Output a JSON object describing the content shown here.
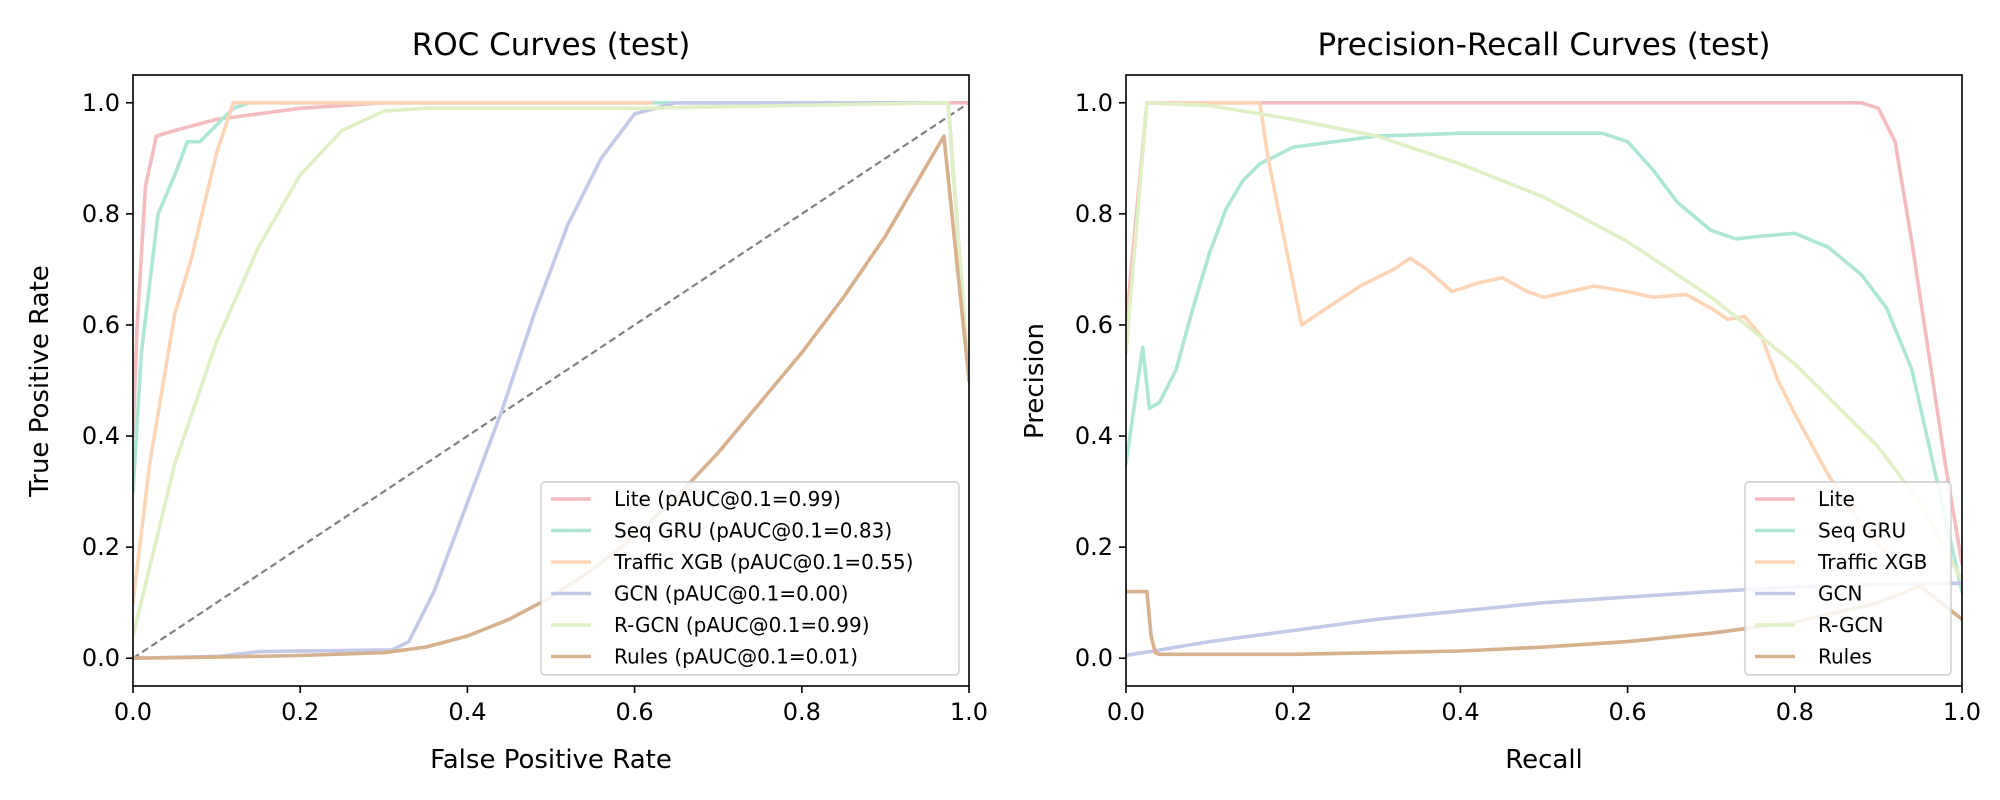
{
  "chart_data": [
    {
      "type": "line",
      "title": "ROC Curves (test)",
      "xlabel": "False Positive Rate",
      "ylabel": "True Positive Rate",
      "xlim": [
        0,
        1
      ],
      "ylim": [
        -0.05,
        1.05
      ],
      "xticks": [
        "0.0",
        "0.2",
        "0.4",
        "0.6",
        "0.8",
        "1.0"
      ],
      "yticks": [
        "0.0",
        "0.2",
        "0.4",
        "0.6",
        "0.8",
        "1.0"
      ],
      "legend_position": "bottom-right",
      "reference_line": {
        "x": [
          0,
          1
        ],
        "y": [
          0,
          1
        ],
        "color": "#808080",
        "style": "dashed"
      },
      "series": [
        {
          "name": "Lite (pAUC@0.1=0.99)",
          "color": "#f4bcbf",
          "x": [
            0.0,
            0.005,
            0.015,
            0.028,
            0.05,
            0.1,
            0.2,
            0.3,
            0.5,
            1.0
          ],
          "y": [
            0.4,
            0.6,
            0.85,
            0.94,
            0.95,
            0.97,
            0.99,
            1.0,
            1.0,
            1.0
          ]
        },
        {
          "name": "Seq GRU (pAUC@0.1=0.83)",
          "color": "#aee6d6",
          "x": [
            0.0,
            0.01,
            0.03,
            0.05,
            0.065,
            0.08,
            0.1,
            0.12,
            0.14,
            0.3,
            0.6,
            0.97,
            0.975,
            1.0
          ],
          "y": [
            0.3,
            0.55,
            0.8,
            0.87,
            0.93,
            0.93,
            0.96,
            0.99,
            1.0,
            1.0,
            1.0,
            1.0,
            1.0,
            0.5
          ]
        },
        {
          "name": "Traffic XGB (pAUC@0.1=0.55)",
          "color": "#fdd4b6",
          "x": [
            0.0,
            0.02,
            0.05,
            0.07,
            0.1,
            0.12,
            0.3,
            0.62
          ],
          "y": [
            0.1,
            0.35,
            0.62,
            0.72,
            0.91,
            1.0,
            1.0,
            1.0
          ]
        },
        {
          "name": "GCN (pAUC@0.1=0.00)",
          "color": "#c4c9e8",
          "x": [
            0.0,
            0.1,
            0.15,
            0.31,
            0.33,
            0.36,
            0.4,
            0.44,
            0.48,
            0.52,
            0.56,
            0.6,
            0.65,
            0.7,
            0.8,
            0.97,
            0.975,
            1.0
          ],
          "y": [
            0.0,
            0.003,
            0.012,
            0.015,
            0.03,
            0.12,
            0.28,
            0.44,
            0.62,
            0.78,
            0.9,
            0.98,
            1.0,
            1.0,
            1.0,
            1.0,
            1.0,
            0.5
          ]
        },
        {
          "name": "R-GCN (pAUC@0.1=0.99)",
          "color": "#e0efc6",
          "x": [
            0.0,
            0.05,
            0.1,
            0.15,
            0.2,
            0.25,
            0.3,
            0.35,
            0.6,
            0.97,
            0.975,
            1.0
          ],
          "y": [
            0.04,
            0.35,
            0.57,
            0.74,
            0.87,
            0.95,
            0.985,
            0.99,
            0.99,
            1.0,
            1.0,
            0.5
          ]
        },
        {
          "name": "Rules (pAUC@0.1=0.01)",
          "color": "#d7b08e",
          "x": [
            0.0,
            0.1,
            0.2,
            0.3,
            0.35,
            0.4,
            0.45,
            0.5,
            0.55,
            0.6,
            0.65,
            0.7,
            0.75,
            0.8,
            0.85,
            0.9,
            0.97,
            1.0
          ],
          "y": [
            0.0,
            0.002,
            0.005,
            0.01,
            0.02,
            0.04,
            0.07,
            0.11,
            0.16,
            0.22,
            0.29,
            0.37,
            0.46,
            0.55,
            0.65,
            0.76,
            0.94,
            0.5
          ]
        }
      ]
    },
    {
      "type": "line",
      "title": "Precision-Recall Curves (test)",
      "xlabel": "Recall",
      "ylabel": "Precision",
      "xlim": [
        0,
        1
      ],
      "ylim": [
        -0.05,
        1.05
      ],
      "xticks": [
        "0.0",
        "0.2",
        "0.4",
        "0.6",
        "0.8",
        "1.0"
      ],
      "yticks": [
        "0.0",
        "0.2",
        "0.4",
        "0.6",
        "0.8",
        "1.0"
      ],
      "legend_position": "bottom-right",
      "series": [
        {
          "name": "Lite",
          "color": "#f4bcbf",
          "x": [
            0.0,
            0.025,
            0.3,
            0.6,
            0.88,
            0.9,
            0.92,
            0.94,
            0.96,
            0.98,
            1.0
          ],
          "y": [
            0.6,
            1.0,
            1.0,
            1.0,
            1.0,
            0.99,
            0.93,
            0.75,
            0.55,
            0.35,
            0.17
          ]
        },
        {
          "name": "Seq GRU",
          "color": "#aee6d6",
          "x": [
            0.0,
            0.02,
            0.028,
            0.04,
            0.06,
            0.08,
            0.1,
            0.12,
            0.14,
            0.16,
            0.2,
            0.3,
            0.4,
            0.5,
            0.57,
            0.6,
            0.63,
            0.66,
            0.7,
            0.73,
            0.76,
            0.8,
            0.84,
            0.88,
            0.91,
            0.94,
            0.97,
            1.0
          ],
          "y": [
            0.35,
            0.56,
            0.45,
            0.46,
            0.52,
            0.63,
            0.73,
            0.81,
            0.86,
            0.89,
            0.92,
            0.94,
            0.945,
            0.945,
            0.945,
            0.93,
            0.88,
            0.82,
            0.77,
            0.755,
            0.76,
            0.765,
            0.74,
            0.69,
            0.63,
            0.52,
            0.32,
            0.12
          ]
        },
        {
          "name": "Traffic XGB",
          "color": "#fdd4b6",
          "x": [
            0.025,
            0.16,
            0.17,
            0.19,
            0.21,
            0.24,
            0.28,
            0.32,
            0.34,
            0.36,
            0.39,
            0.42,
            0.45,
            0.48,
            0.5,
            0.53,
            0.56,
            0.6,
            0.63,
            0.67,
            0.7,
            0.72,
            0.74,
            0.76,
            0.78,
            0.8,
            0.84,
            0.88,
            0.92
          ],
          "y": [
            1.0,
            1.0,
            0.9,
            0.75,
            0.6,
            0.63,
            0.67,
            0.7,
            0.72,
            0.7,
            0.66,
            0.675,
            0.685,
            0.66,
            0.65,
            0.66,
            0.67,
            0.66,
            0.65,
            0.655,
            0.63,
            0.61,
            0.615,
            0.58,
            0.5,
            0.44,
            0.33,
            0.24,
            0.17
          ]
        },
        {
          "name": "GCN",
          "color": "#c4c9e8",
          "x": [
            0.0,
            0.1,
            0.2,
            0.3,
            0.4,
            0.5,
            0.6,
            0.7,
            0.8,
            0.9,
            1.0
          ],
          "y": [
            0.005,
            0.03,
            0.05,
            0.07,
            0.085,
            0.1,
            0.11,
            0.12,
            0.128,
            0.133,
            0.135
          ]
        },
        {
          "name": "R-GCN",
          "color": "#e0efc6",
          "x": [
            0.0,
            0.025,
            0.1,
            0.2,
            0.3,
            0.4,
            0.5,
            0.6,
            0.7,
            0.8,
            0.9,
            0.95,
            1.0
          ],
          "y": [
            0.55,
            1.0,
            0.995,
            0.97,
            0.94,
            0.89,
            0.83,
            0.75,
            0.65,
            0.53,
            0.38,
            0.28,
            0.14
          ]
        },
        {
          "name": "Rules",
          "color": "#d7b08e",
          "x": [
            0.0,
            0.025,
            0.03,
            0.035,
            0.04,
            0.1,
            0.2,
            0.3,
            0.4,
            0.5,
            0.6,
            0.7,
            0.8,
            0.9,
            0.95,
            1.0
          ],
          "y": [
            0.12,
            0.12,
            0.04,
            0.01,
            0.007,
            0.007,
            0.007,
            0.01,
            0.013,
            0.02,
            0.03,
            0.045,
            0.065,
            0.1,
            0.13,
            0.07
          ]
        }
      ]
    }
  ]
}
